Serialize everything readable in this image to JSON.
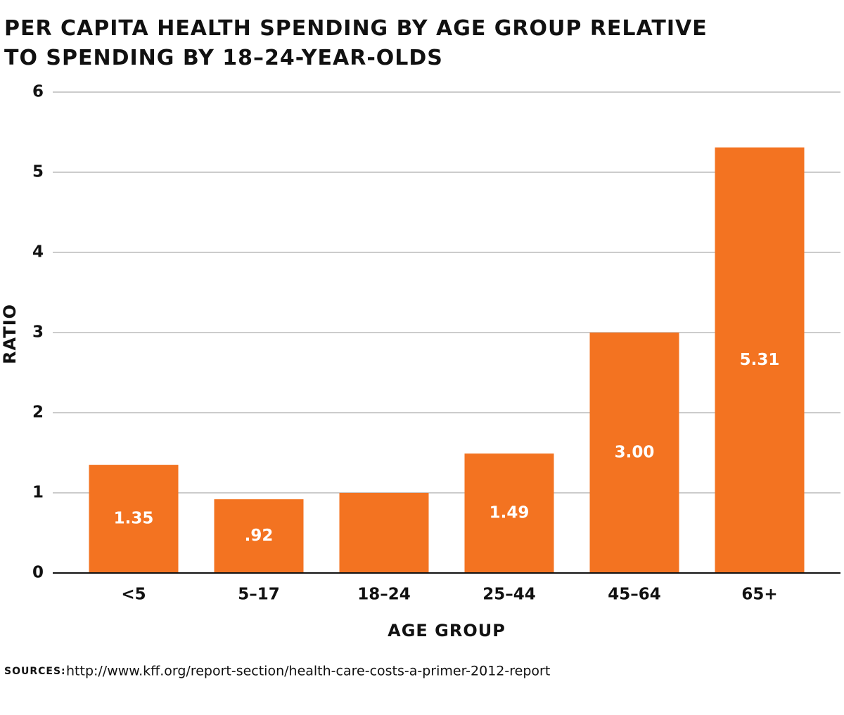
{
  "chart_data": {
    "type": "bar",
    "title": "PER CAPITA HEALTH SPENDING BY AGE GROUP RELATIVE TO SPENDING BY 18–24-YEAR-OLDS",
    "x_label": "AGE GROUP",
    "y_label": "RATIO",
    "categories": [
      "<5",
      "5–17",
      "18–24",
      "25–44",
      "45–64",
      "65+"
    ],
    "values": [
      1.35,
      0.92,
      1.0,
      1.49,
      3.0,
      5.31
    ],
    "value_labels": [
      "1.35",
      ".92",
      null,
      "1.49",
      "3.00",
      "5.31"
    ],
    "color": "#f37321",
    "ylim": [
      0,
      6
    ],
    "yticks": [
      0,
      1,
      2,
      3,
      4,
      5,
      6
    ],
    "grid": true,
    "source_label": "SOURCES:",
    "source": "http://www.kff.org/report-section/health-care-costs-a-primer-2012-report"
  }
}
